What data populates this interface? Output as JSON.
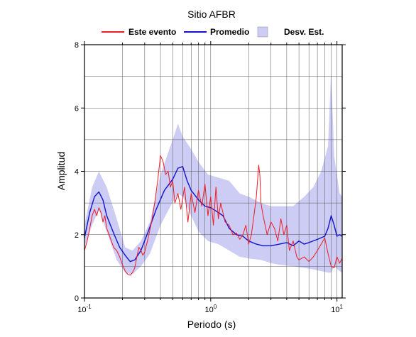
{
  "chart_data": {
    "type": "line",
    "title": "Sitio AFBR",
    "xlabel": "Periodo (s)",
    "ylabel": "Amplitud",
    "xscale": "log",
    "xlim": [
      0.1,
      11
    ],
    "ylim": [
      0,
      8
    ],
    "grid": true,
    "legend_position": "top",
    "x_ticks": [
      {
        "value": 0.1,
        "base": "10",
        "exp": "-1"
      },
      {
        "value": 1,
        "base": "10",
        "exp": "0"
      },
      {
        "value": 10,
        "base": "10",
        "exp": "1"
      }
    ],
    "y_ticks": [
      0,
      2,
      4,
      6,
      8
    ],
    "legend": [
      {
        "label": "Este evento",
        "kind": "line",
        "color": "#ee1c25"
      },
      {
        "label": "Promedio",
        "kind": "line",
        "color": "#1111cc"
      },
      {
        "label": "Desv. Est.",
        "kind": "band",
        "color": "#ccccf5"
      }
    ],
    "band": {
      "name": "Desv. Est.",
      "x": [
        0.1,
        0.115,
        0.13,
        0.15,
        0.18,
        0.21,
        0.24,
        0.28,
        0.33,
        0.4,
        0.48,
        0.55,
        0.6,
        0.7,
        0.8,
        0.95,
        1.15,
        1.4,
        1.7,
        2.0,
        2.5,
        3.0,
        3.5,
        4.5,
        5.5,
        6.5,
        7.5,
        8.5,
        9.0,
        9.5,
        10.5,
        11.0
      ],
      "upper": [
        2.3,
        3.5,
        4.0,
        3.5,
        2.5,
        1.6,
        1.5,
        1.8,
        2.4,
        3.9,
        4.8,
        5.5,
        5.1,
        4.7,
        4.3,
        3.9,
        3.8,
        3.7,
        3.3,
        3.2,
        3.0,
        2.9,
        2.9,
        2.9,
        3.2,
        3.5,
        4.0,
        4.8,
        7.2,
        4.5,
        3.3,
        3.2
      ],
      "lower": [
        1.6,
        2.3,
        2.8,
        2.1,
        1.2,
        0.8,
        0.75,
        1.0,
        1.4,
        2.3,
        2.9,
        3.3,
        3.2,
        2.6,
        2.1,
        1.8,
        1.7,
        1.5,
        1.3,
        1.25,
        1.2,
        1.1,
        1.05,
        1.0,
        0.95,
        0.9,
        0.85,
        0.8,
        0.8,
        1.0,
        0.85,
        0.8
      ]
    },
    "series": [
      {
        "name": "Promedio",
        "color": "#1111cc",
        "x": [
          0.1,
          0.11,
          0.12,
          0.13,
          0.14,
          0.15,
          0.17,
          0.19,
          0.21,
          0.23,
          0.25,
          0.28,
          0.32,
          0.37,
          0.43,
          0.5,
          0.55,
          0.6,
          0.65,
          0.7,
          0.8,
          0.9,
          1.0,
          1.1,
          1.25,
          1.4,
          1.6,
          1.8,
          2.0,
          2.3,
          2.6,
          3.0,
          3.5,
          4.0,
          4.5,
          5.0,
          5.5,
          6.0,
          7.0,
          8.0,
          8.5,
          9.0,
          9.5,
          10.0,
          10.5,
          11.0
        ],
        "values": [
          1.9,
          2.7,
          3.2,
          3.35,
          3.1,
          2.6,
          2.05,
          1.6,
          1.35,
          1.15,
          1.2,
          1.5,
          2.1,
          2.8,
          3.4,
          3.75,
          4.1,
          4.15,
          3.7,
          3.4,
          3.1,
          2.9,
          2.85,
          2.75,
          2.6,
          2.2,
          2.0,
          1.95,
          1.8,
          1.7,
          1.65,
          1.65,
          1.7,
          1.75,
          1.65,
          1.8,
          1.7,
          1.75,
          1.85,
          1.95,
          2.2,
          2.6,
          2.3,
          1.95,
          2.0,
          1.95
        ]
      },
      {
        "name": "Este evento",
        "color": "#ee1c25",
        "x": [
          0.1,
          0.105,
          0.11,
          0.115,
          0.12,
          0.125,
          0.13,
          0.135,
          0.14,
          0.145,
          0.15,
          0.16,
          0.17,
          0.18,
          0.19,
          0.2,
          0.21,
          0.22,
          0.23,
          0.24,
          0.25,
          0.26,
          0.27,
          0.28,
          0.29,
          0.3,
          0.32,
          0.34,
          0.36,
          0.38,
          0.4,
          0.42,
          0.44,
          0.46,
          0.48,
          0.5,
          0.52,
          0.55,
          0.58,
          0.62,
          0.66,
          0.7,
          0.75,
          0.8,
          0.85,
          0.9,
          0.95,
          1.0,
          1.05,
          1.1,
          1.15,
          1.2,
          1.3,
          1.4,
          1.5,
          1.6,
          1.7,
          1.8,
          1.9,
          2.0,
          2.1,
          2.2,
          2.3,
          2.4,
          2.45,
          2.5,
          2.6,
          2.7,
          2.8,
          3.0,
          3.2,
          3.4,
          3.6,
          3.8,
          4.0,
          4.2,
          4.5,
          4.8,
          5.0,
          5.5,
          6.0,
          6.5,
          7.0,
          7.5,
          8.0,
          8.5,
          9.0,
          9.5,
          10.0,
          10.5,
          11.0
        ],
        "values": [
          1.5,
          1.8,
          2.2,
          2.6,
          2.8,
          2.6,
          2.85,
          2.7,
          2.4,
          2.6,
          2.2,
          1.9,
          1.6,
          1.5,
          1.3,
          1.05,
          0.85,
          0.75,
          0.72,
          0.8,
          0.95,
          1.3,
          1.6,
          1.5,
          1.35,
          1.45,
          1.9,
          2.4,
          3.0,
          3.7,
          4.5,
          4.3,
          3.9,
          4.0,
          3.5,
          3.7,
          3.0,
          3.3,
          2.8,
          3.5,
          2.4,
          3.3,
          2.7,
          3.4,
          2.9,
          3.6,
          2.6,
          3.2,
          2.3,
          3.5,
          2.5,
          3.0,
          2.4,
          2.3,
          2.0,
          2.05,
          1.85,
          2.0,
          2.3,
          1.7,
          2.0,
          2.6,
          3.2,
          4.2,
          3.9,
          3.0,
          2.6,
          2.3,
          2.0,
          2.4,
          2.2,
          1.8,
          2.5,
          2.0,
          2.3,
          1.5,
          1.8,
          1.3,
          1.2,
          1.3,
          1.15,
          1.3,
          1.5,
          1.7,
          1.9,
          1.4,
          1.0,
          0.95,
          1.3,
          1.1,
          1.25
        ]
      }
    ]
  }
}
